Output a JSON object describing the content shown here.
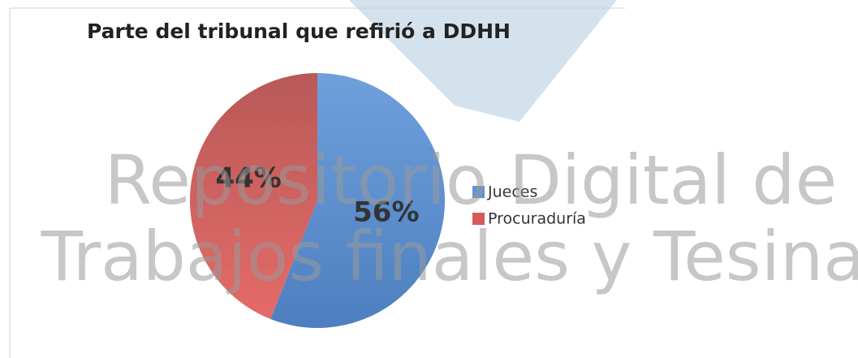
{
  "chart_data": {
    "type": "pie",
    "title": "Parte del tribunal que refirió a DDHH",
    "categories": [
      "Jueces",
      "Procuraduría"
    ],
    "values": [
      56,
      44
    ],
    "value_labels": [
      "56%",
      "44%"
    ],
    "colors": [
      "#5f93d3",
      "#d75a5a"
    ],
    "legend": "right"
  },
  "watermark": [
    "Repositorio Digital de",
    "Trabajos finales y Tesinas"
  ]
}
